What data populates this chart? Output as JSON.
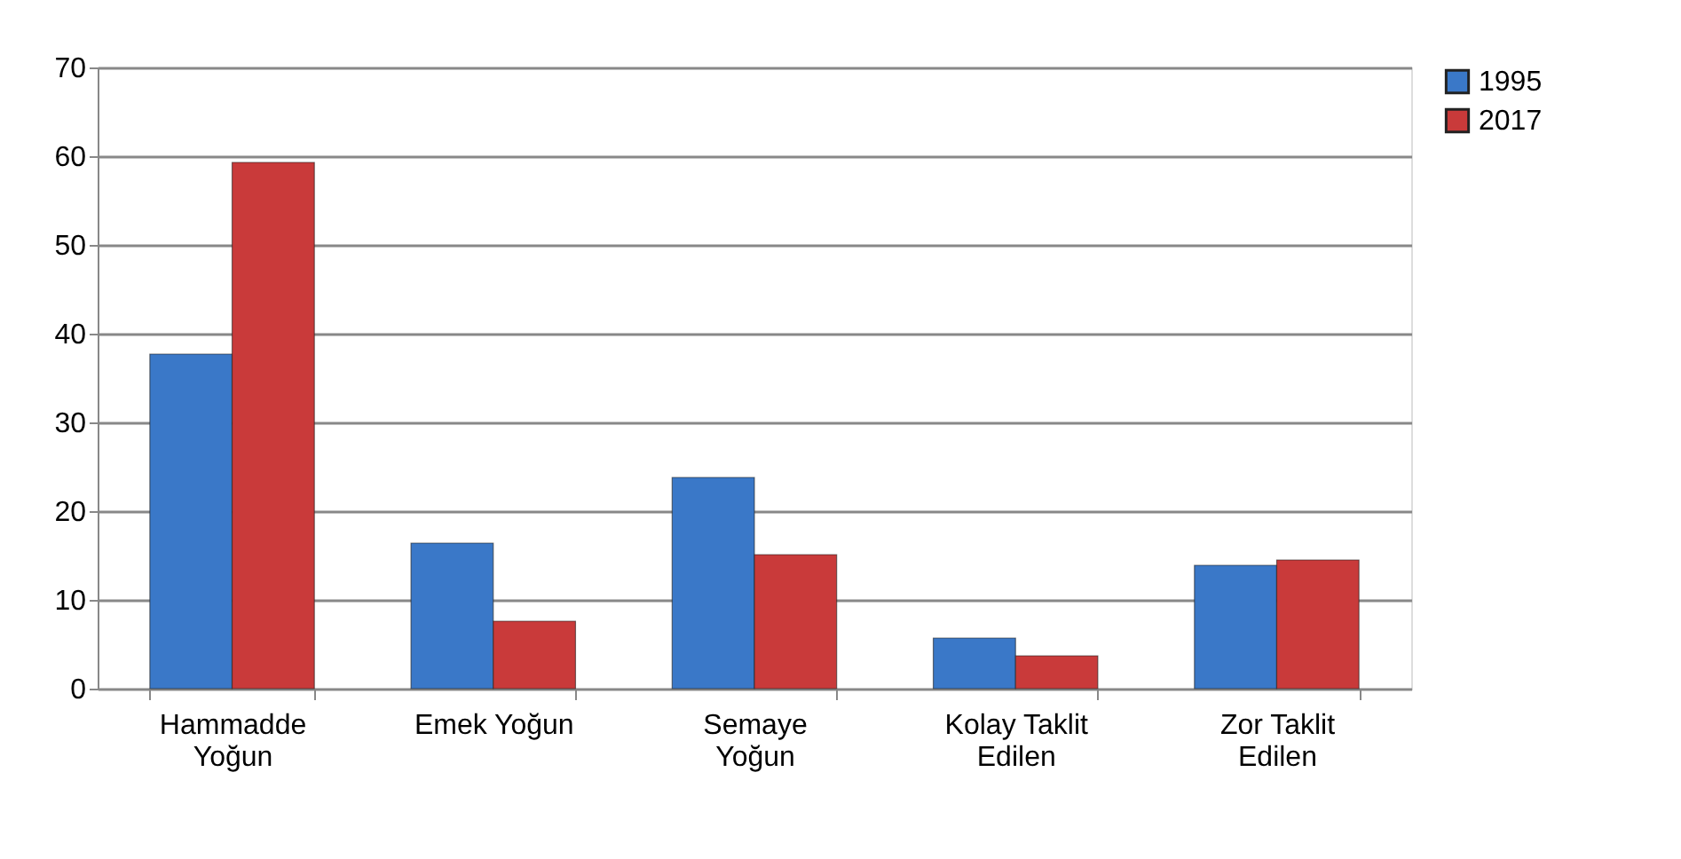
{
  "chart_data": {
    "type": "bar",
    "categories": [
      "Hammadde\nYoğun",
      "Emek Yoğun",
      "Semaye\nYoğun",
      "Kolay Taklit\nEdilen",
      "Zor Taklit\nEdilen"
    ],
    "series": [
      {
        "name": "1995",
        "color": "#3a78c8",
        "values": [
          37.7,
          16.4,
          23.8,
          5.7,
          13.9
        ]
      },
      {
        "name": "2017",
        "color": "#c93a3a",
        "values": [
          59.3,
          7.6,
          15.1,
          3.7,
          14.5
        ]
      }
    ],
    "ylim": [
      0,
      70
    ],
    "yticks": [
      0,
      10,
      20,
      30,
      40,
      50,
      60,
      70
    ],
    "grid": "y",
    "legend": "right"
  }
}
